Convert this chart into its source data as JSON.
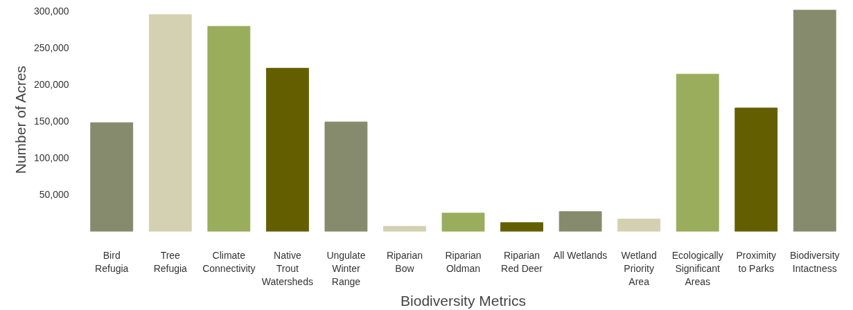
{
  "chart_data": {
    "type": "bar",
    "xlabel": "Biodiversity Metrics",
    "ylabel": "Number of Acres",
    "categories": [
      "Bird\nRefugia",
      "Tree\nRefugia",
      "Climate\nConnectivity",
      "Native\nTrout\nWatersheds",
      "Ungulate\nWinter\nRange",
      "Riparian\nBow",
      "Riparian\nOldman",
      "Riparian\nRed Deer",
      "All Wetlands",
      "Wetland\nPriority\nArea",
      "Ecologically\nSignificant\nAreas",
      "Proximity\nto Parks",
      "Biodiversity\nIntactness"
    ],
    "values": [
      148000,
      295000,
      279000,
      222000,
      149000,
      7000,
      25000,
      12000,
      27000,
      17000,
      214000,
      168000,
      301000
    ],
    "colors": [
      "#878b6e",
      "#d3d1b1",
      "#99ad5c",
      "#635f00",
      "#878b6e",
      "#d3d1b1",
      "#99ad5c",
      "#635f00",
      "#878b6e",
      "#d3d1b1",
      "#99ad5c",
      "#635f00",
      "#878b6e"
    ],
    "ylim": [
      0,
      305000
    ],
    "yticks": [
      {
        "value": 50000,
        "label": "50,000"
      },
      {
        "value": 100000,
        "label": "100,000"
      },
      {
        "value": 150000,
        "label": "150,000"
      },
      {
        "value": 200000,
        "label": "200,000"
      },
      {
        "value": 250000,
        "label": "250,000"
      },
      {
        "value": 300000,
        "label": "300,000"
      }
    ],
    "grid": false
  }
}
